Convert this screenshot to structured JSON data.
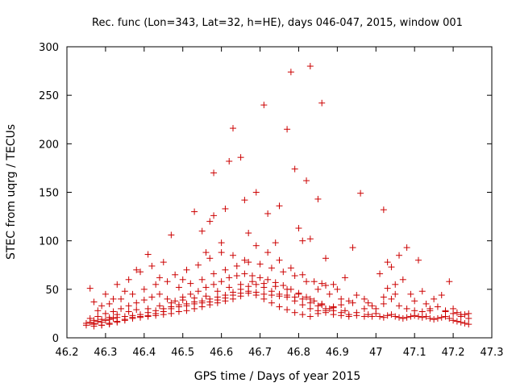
{
  "chart_data": {
    "type": "scatter",
    "title": "Rec. func (Lon=343, Lat=32, h=HE), days 046-047, 2015, window 001",
    "xlabel": "GPS time / Days of year 2015",
    "ylabel": "STEC from uqrg / TECUs",
    "xlim": [
      46.2,
      47.3
    ],
    "ylim": [
      0,
      300
    ],
    "xticks": [
      "46.2",
      "46.3",
      "46.4",
      "46.5",
      "46.6",
      "46.7",
      "46.8",
      "46.9",
      "47",
      "47.1",
      "47.2",
      "47.3"
    ],
    "yticks": [
      "0",
      "50",
      "100",
      "150",
      "200",
      "250",
      "300"
    ],
    "marker": "+",
    "color": "#cc0000",
    "points": [
      [
        46.25,
        15
      ],
      [
        46.26,
        16
      ],
      [
        46.27,
        15
      ],
      [
        46.28,
        17
      ],
      [
        46.29,
        16
      ],
      [
        46.3,
        18
      ],
      [
        46.31,
        19
      ],
      [
        46.32,
        20
      ],
      [
        46.33,
        21
      ],
      [
        46.35,
        22
      ],
      [
        46.37,
        23
      ],
      [
        46.39,
        24
      ],
      [
        46.41,
        26
      ],
      [
        46.43,
        28
      ],
      [
        46.45,
        30
      ],
      [
        46.47,
        32
      ],
      [
        46.49,
        34
      ],
      [
        46.51,
        35
      ],
      [
        46.53,
        37
      ],
      [
        46.55,
        38
      ],
      [
        46.57,
        40
      ],
      [
        46.59,
        42
      ],
      [
        46.61,
        44
      ],
      [
        46.63,
        47
      ],
      [
        46.65,
        50
      ],
      [
        46.67,
        53
      ],
      [
        46.69,
        55
      ],
      [
        46.71,
        52
      ],
      [
        46.73,
        48
      ],
      [
        46.75,
        45
      ],
      [
        46.77,
        44
      ],
      [
        46.79,
        42
      ],
      [
        46.81,
        40
      ],
      [
        46.83,
        36
      ],
      [
        46.85,
        33
      ],
      [
        46.87,
        30
      ],
      [
        46.89,
        28
      ],
      [
        46.91,
        26
      ],
      [
        46.93,
        24
      ],
      [
        46.95,
        23
      ],
      [
        46.97,
        22
      ],
      [
        46.99,
        22
      ],
      [
        46.25,
        13
      ],
      [
        46.27,
        12
      ],
      [
        46.29,
        13
      ],
      [
        46.31,
        15
      ],
      [
        46.33,
        17
      ],
      [
        46.35,
        19
      ],
      [
        46.37,
        21
      ],
      [
        46.39,
        22
      ],
      [
        46.41,
        23
      ],
      [
        46.43,
        25
      ],
      [
        46.45,
        27
      ],
      [
        46.47,
        30
      ],
      [
        46.49,
        32
      ],
      [
        46.51,
        33
      ],
      [
        46.53,
        35
      ],
      [
        46.55,
        36
      ],
      [
        46.57,
        37
      ],
      [
        46.59,
        39
      ],
      [
        46.61,
        41
      ],
      [
        46.63,
        44
      ],
      [
        46.65,
        46
      ],
      [
        46.67,
        48
      ],
      [
        46.69,
        47
      ],
      [
        46.71,
        45
      ],
      [
        46.73,
        44
      ],
      [
        46.75,
        43
      ],
      [
        46.77,
        42
      ],
      [
        46.79,
        38
      ],
      [
        46.81,
        34
      ],
      [
        46.83,
        30
      ],
      [
        46.85,
        28
      ],
      [
        46.87,
        26
      ],
      [
        46.89,
        24
      ],
      [
        46.91,
        23
      ],
      [
        46.93,
        22
      ],
      [
        46.26,
        20
      ],
      [
        46.28,
        22
      ],
      [
        46.3,
        25
      ],
      [
        46.32,
        27
      ],
      [
        46.34,
        30
      ],
      [
        46.36,
        33
      ],
      [
        46.38,
        36
      ],
      [
        46.4,
        39
      ],
      [
        46.42,
        42
      ],
      [
        46.44,
        45
      ],
      [
        46.46,
        40
      ],
      [
        46.48,
        38
      ],
      [
        46.5,
        42
      ],
      [
        46.52,
        45
      ],
      [
        46.54,
        48
      ],
      [
        46.56,
        52
      ],
      [
        46.58,
        55
      ],
      [
        46.6,
        58
      ],
      [
        46.62,
        62
      ],
      [
        46.64,
        64
      ],
      [
        46.66,
        66
      ],
      [
        46.68,
        64
      ],
      [
        46.7,
        62
      ],
      [
        46.72,
        60
      ],
      [
        46.74,
        57
      ],
      [
        46.76,
        54
      ],
      [
        46.78,
        50
      ],
      [
        46.8,
        46
      ],
      [
        46.82,
        42
      ],
      [
        46.84,
        38
      ],
      [
        46.86,
        34
      ],
      [
        46.88,
        30
      ],
      [
        46.28,
        28
      ],
      [
        46.31,
        35
      ],
      [
        46.34,
        40
      ],
      [
        46.37,
        45
      ],
      [
        46.4,
        50
      ],
      [
        46.43,
        55
      ],
      [
        46.46,
        58
      ],
      [
        46.49,
        52
      ],
      [
        46.52,
        56
      ],
      [
        46.55,
        60
      ],
      [
        46.58,
        66
      ],
      [
        46.61,
        70
      ],
      [
        46.64,
        74
      ],
      [
        46.67,
        78
      ],
      [
        46.7,
        76
      ],
      [
        46.73,
        72
      ],
      [
        46.76,
        68
      ],
      [
        46.79,
        64
      ],
      [
        46.82,
        58
      ],
      [
        46.85,
        50
      ],
      [
        46.88,
        45
      ],
      [
        46.91,
        40
      ],
      [
        46.94,
        36
      ],
      [
        46.97,
        30
      ],
      [
        46.3,
        45
      ],
      [
        46.33,
        55
      ],
      [
        46.36,
        60
      ],
      [
        46.39,
        68
      ],
      [
        46.42,
        74
      ],
      [
        46.45,
        78
      ],
      [
        46.48,
        65
      ],
      [
        46.51,
        70
      ],
      [
        46.54,
        75
      ],
      [
        46.57,
        82
      ],
      [
        46.6,
        88
      ],
      [
        46.63,
        85
      ],
      [
        46.66,
        80
      ],
      [
        46.69,
        95
      ],
      [
        46.72,
        88
      ],
      [
        46.75,
        80
      ],
      [
        46.78,
        72
      ],
      [
        46.81,
        65
      ],
      [
        46.84,
        58
      ],
      [
        46.87,
        54
      ],
      [
        46.9,
        50
      ],
      [
        46.26,
        51
      ],
      [
        46.27,
        37
      ],
      [
        46.29,
        33
      ],
      [
        46.32,
        40
      ],
      [
        46.35,
        48
      ],
      [
        46.38,
        70
      ],
      [
        46.41,
        86
      ],
      [
        46.44,
        62
      ],
      [
        46.47,
        106
      ],
      [
        46.5,
        60
      ],
      [
        46.53,
        130
      ],
      [
        46.55,
        110
      ],
      [
        46.56,
        88
      ],
      [
        46.57,
        120
      ],
      [
        46.58,
        126
      ],
      [
        46.58,
        170
      ],
      [
        46.6,
        98
      ],
      [
        46.61,
        133
      ],
      [
        46.62,
        182
      ],
      [
        46.63,
        216
      ],
      [
        46.65,
        186
      ],
      [
        46.66,
        142
      ],
      [
        46.67,
        108
      ],
      [
        46.69,
        150
      ],
      [
        46.71,
        240
      ],
      [
        46.72,
        128
      ],
      [
        46.74,
        98
      ],
      [
        46.75,
        136
      ],
      [
        46.77,
        215
      ],
      [
        46.78,
        274
      ],
      [
        46.79,
        174
      ],
      [
        46.8,
        113
      ],
      [
        46.81,
        100
      ],
      [
        46.82,
        162
      ],
      [
        46.83,
        280
      ],
      [
        46.83,
        102
      ],
      [
        46.85,
        143
      ],
      [
        46.86,
        242
      ],
      [
        46.86,
        56
      ],
      [
        46.87,
        82
      ],
      [
        46.89,
        55
      ],
      [
        46.92,
        62
      ],
      [
        46.94,
        93
      ],
      [
        46.96,
        149
      ],
      [
        46.27,
        18
      ],
      [
        46.29,
        19
      ],
      [
        46.31,
        21
      ],
      [
        46.33,
        24
      ],
      [
        46.36,
        27
      ],
      [
        46.38,
        29
      ],
      [
        46.41,
        30
      ],
      [
        46.44,
        33
      ],
      [
        46.47,
        36
      ],
      [
        46.5,
        39
      ],
      [
        46.53,
        41
      ],
      [
        46.56,
        43
      ],
      [
        46.59,
        48
      ],
      [
        46.62,
        52
      ],
      [
        46.65,
        55
      ],
      [
        46.68,
        58
      ],
      [
        46.71,
        56
      ],
      [
        46.74,
        53
      ],
      [
        46.77,
        50
      ],
      [
        46.8,
        45
      ],
      [
        46.83,
        40
      ],
      [
        46.86,
        35
      ],
      [
        46.89,
        32
      ],
      [
        46.92,
        28
      ],
      [
        46.95,
        26
      ],
      [
        46.98,
        24
      ],
      [
        47.0,
        25
      ],
      [
        47.01,
        22
      ],
      [
        47.02,
        21
      ],
      [
        47.03,
        23
      ],
      [
        47.04,
        24
      ],
      [
        47.05,
        22
      ],
      [
        47.06,
        21
      ],
      [
        47.07,
        20
      ],
      [
        47.08,
        21
      ],
      [
        47.09,
        22
      ],
      [
        47.1,
        23
      ],
      [
        47.11,
        22
      ],
      [
        47.12,
        21
      ],
      [
        47.13,
        22
      ],
      [
        47.14,
        20
      ],
      [
        47.15,
        19
      ],
      [
        47.16,
        20
      ],
      [
        47.17,
        21
      ],
      [
        47.18,
        22
      ],
      [
        47.19,
        20
      ],
      [
        47.2,
        18
      ],
      [
        47.21,
        17
      ],
      [
        47.22,
        16
      ],
      [
        47.23,
        15
      ],
      [
        47.24,
        14
      ],
      [
        47.0,
        30
      ],
      [
        47.02,
        35
      ],
      [
        47.04,
        40
      ],
      [
        47.06,
        33
      ],
      [
        47.08,
        30
      ],
      [
        47.1,
        28
      ],
      [
        47.12,
        27
      ],
      [
        47.14,
        30
      ],
      [
        47.16,
        32
      ],
      [
        47.18,
        28
      ],
      [
        47.2,
        25
      ],
      [
        47.22,
        22
      ],
      [
        47.24,
        20
      ],
      [
        47.01,
        66
      ],
      [
        47.02,
        42
      ],
      [
        47.03,
        51
      ],
      [
        47.03,
        78
      ],
      [
        47.04,
        73
      ],
      [
        47.05,
        55
      ],
      [
        47.06,
        85
      ],
      [
        47.07,
        60
      ],
      [
        47.08,
        93
      ],
      [
        47.09,
        45
      ],
      [
        47.1,
        38
      ],
      [
        47.11,
        80
      ],
      [
        47.12,
        48
      ],
      [
        47.13,
        35
      ],
      [
        47.15,
        40
      ],
      [
        47.17,
        44
      ],
      [
        47.19,
        58
      ],
      [
        47.2,
        30
      ],
      [
        47.21,
        26
      ],
      [
        47.22,
        24
      ],
      [
        47.02,
        132
      ],
      [
        47.05,
        45
      ],
      [
        47.14,
        28
      ],
      [
        47.18,
        27
      ],
      [
        47.23,
        24
      ],
      [
        47.24,
        25
      ],
      [
        46.97,
        40
      ],
      [
        46.98,
        36
      ],
      [
        46.99,
        33
      ],
      [
        46.95,
        44
      ],
      [
        46.93,
        38
      ],
      [
        46.91,
        34
      ],
      [
        46.89,
        31
      ],
      [
        46.87,
        28
      ],
      [
        46.85,
        25
      ],
      [
        46.83,
        22
      ],
      [
        46.81,
        24
      ],
      [
        46.79,
        26
      ],
      [
        46.77,
        29
      ],
      [
        46.75,
        32
      ],
      [
        46.73,
        36
      ],
      [
        46.71,
        40
      ],
      [
        46.69,
        44
      ],
      [
        46.67,
        46
      ],
      [
        46.65,
        43
      ],
      [
        46.63,
        40
      ],
      [
        46.61,
        38
      ],
      [
        46.59,
        36
      ],
      [
        46.57,
        34
      ],
      [
        46.55,
        32
      ],
      [
        46.53,
        30
      ],
      [
        46.51,
        28
      ],
      [
        46.49,
        27
      ],
      [
        46.47,
        25
      ],
      [
        46.45,
        24
      ],
      [
        46.43,
        23
      ],
      [
        46.41,
        22
      ],
      [
        46.39,
        21
      ],
      [
        46.37,
        20
      ],
      [
        46.35,
        18
      ],
      [
        46.33,
        16
      ],
      [
        46.31,
        14
      ],
      [
        46.29,
        13
      ],
      [
        46.27,
        14
      ]
    ]
  }
}
